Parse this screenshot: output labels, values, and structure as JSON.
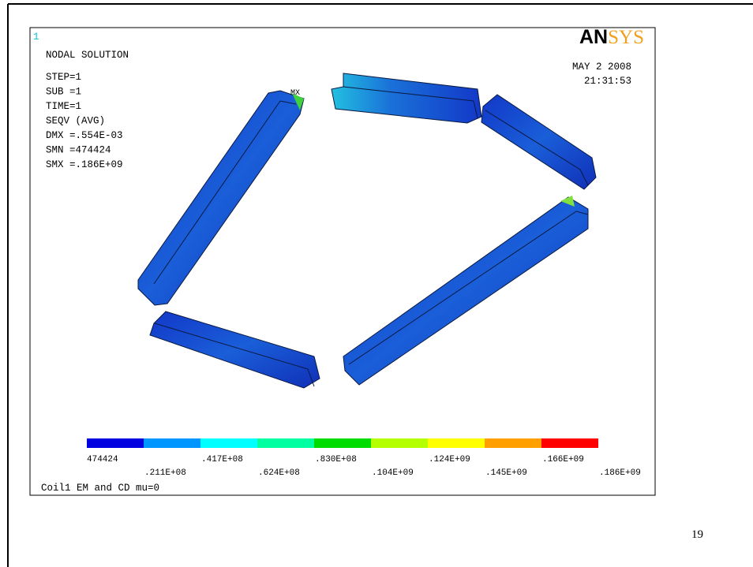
{
  "window_number": "1",
  "title": "NODAL SOLUTION",
  "info": [
    "STEP=1",
    "SUB =1",
    "TIME=1",
    "SEQV     (AVG)",
    "DMX =.554E-03",
    "SMN =474424",
    "SMX =.186E+09"
  ],
  "date": "MAY  2 2008",
  "time": "21:31:53",
  "logo": {
    "bold": "AN",
    "light": "SYS"
  },
  "max_marker": "MX",
  "legend": {
    "colors": [
      "#0000e0",
      "#0096ff",
      "#00ffff",
      "#00ffa0",
      "#00dc00",
      "#b4ff00",
      "#ffff00",
      "#ffa000",
      "#ff0000"
    ],
    "labels": [
      "474424",
      ".211E+08",
      ".417E+08",
      ".624E+08",
      ".830E+08",
      ".104E+09",
      ".124E+09",
      ".145E+09",
      ".166E+09",
      ".186E+09"
    ]
  },
  "footer": "Coil1  EM and CD mu=0",
  "page_number": "19"
}
